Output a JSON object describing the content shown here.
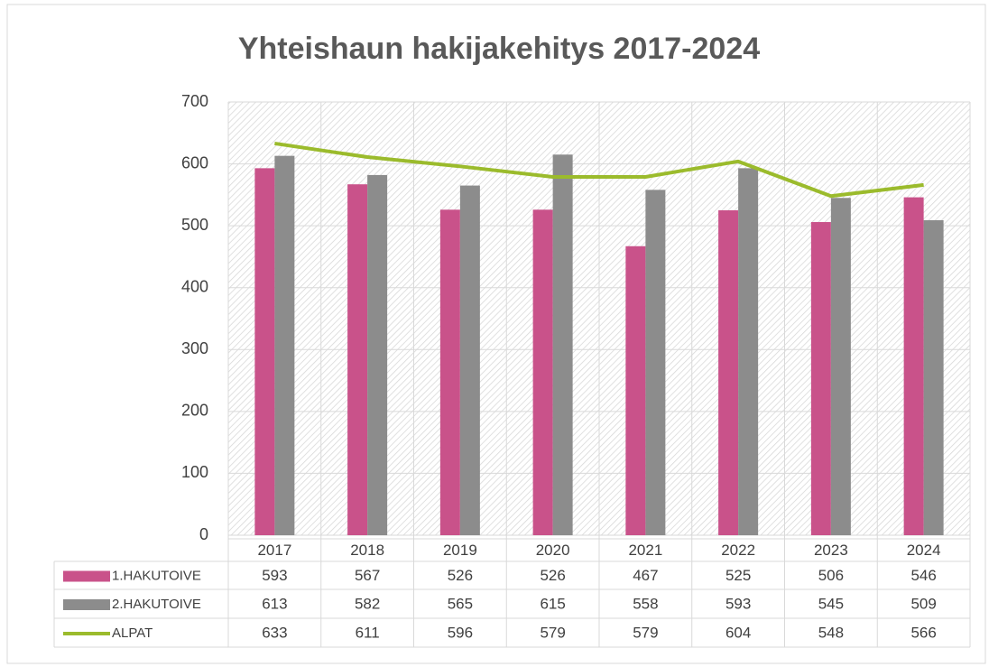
{
  "chart_data": {
    "type": "bar",
    "title": "Yhteishaun hakijakehitys 2017-2024",
    "categories": [
      "2017",
      "2018",
      "2019",
      "2020",
      "2021",
      "2022",
      "2023",
      "2024"
    ],
    "series": [
      {
        "name": "1.HAKUTOIVE",
        "color": "#c9528a",
        "type": "bar",
        "values": [
          593,
          567,
          526,
          526,
          467,
          525,
          506,
          546
        ]
      },
      {
        "name": "2.HAKUTOIVE",
        "color": "#8c8c8c",
        "type": "bar",
        "values": [
          613,
          582,
          565,
          615,
          558,
          593,
          545,
          509
        ]
      },
      {
        "name": "ALPAT",
        "color": "#9bbb2c",
        "type": "line",
        "values": [
          633,
          611,
          596,
          579,
          579,
          604,
          548,
          566
        ]
      }
    ],
    "ylim": [
      0,
      700
    ],
    "yticks": [
      0,
      100,
      200,
      300,
      400,
      500,
      600,
      700
    ],
    "grid": true
  }
}
